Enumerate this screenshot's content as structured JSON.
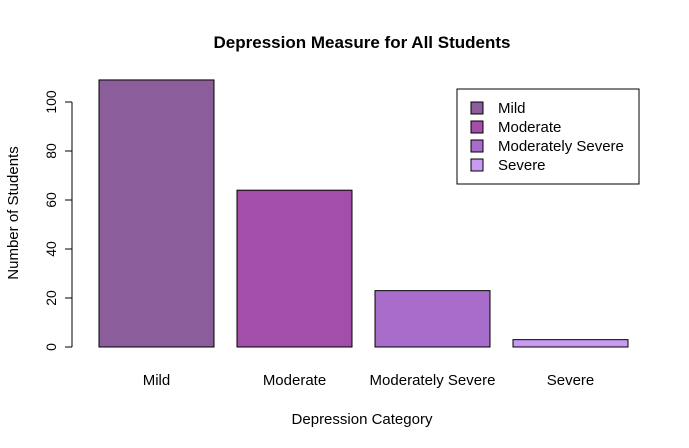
{
  "chart_data": {
    "type": "bar",
    "title": "Depression Measure for All Students",
    "xlabel": "Depression Category",
    "ylabel": "Number of Students",
    "categories": [
      "Mild",
      "Moderate",
      "Moderately Severe",
      "Severe"
    ],
    "values": [
      109,
      64,
      23,
      3
    ],
    "colors": [
      "#8b5e9b",
      "#a34ea8",
      "#a86ccb",
      "#c89af2"
    ],
    "ylim": [
      0,
      110
    ],
    "yticks": [
      0,
      20,
      40,
      60,
      80,
      100
    ],
    "grid": false,
    "legend": {
      "placement": "top-right",
      "entries": [
        "Mild",
        "Moderate",
        "Moderately Severe",
        "Severe"
      ]
    }
  }
}
